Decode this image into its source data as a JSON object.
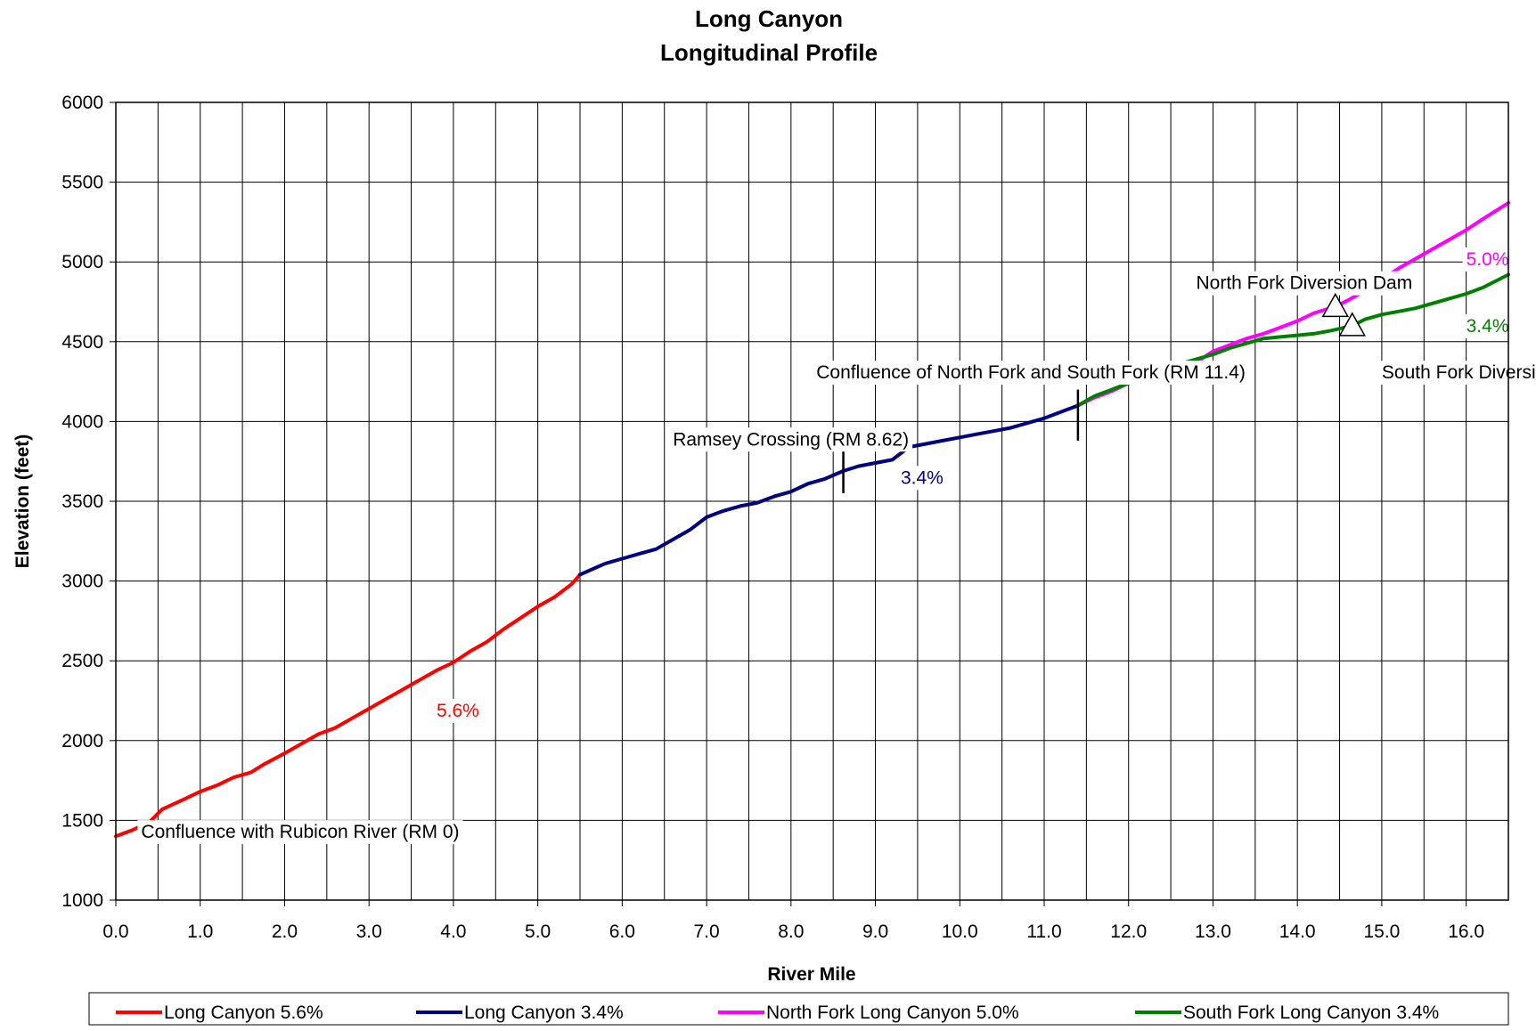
{
  "chart_data": {
    "type": "line",
    "title": "Long Canyon",
    "subtitle": "Longitudinal Profile",
    "xlabel": "River Mile",
    "ylabel": "Elevation (feet)",
    "xlim": [
      0,
      16.5
    ],
    "ylim": [
      1000,
      6000
    ],
    "x_ticks": [
      "0.0",
      "1.0",
      "2.0",
      "3.0",
      "4.0",
      "5.0",
      "6.0",
      "7.0",
      "8.0",
      "9.0",
      "10.0",
      "11.0",
      "12.0",
      "13.0",
      "14.0",
      "15.0",
      "16.0"
    ],
    "y_ticks": [
      "1000",
      "1500",
      "2000",
      "2500",
      "3000",
      "3500",
      "4000",
      "4500",
      "5000",
      "5500",
      "6000"
    ],
    "grid": true,
    "legend_position": "bottom",
    "series": [
      {
        "name": "Long Canyon 5.6%",
        "color": "#ff0000",
        "x": [
          0,
          0.2,
          0.4,
          0.55,
          0.8,
          1.0,
          1.2,
          1.4,
          1.6,
          1.75,
          2.0,
          2.2,
          2.4,
          2.6,
          2.8,
          3.0,
          3.2,
          3.4,
          3.6,
          3.8,
          4.0,
          4.2,
          4.4,
          4.6,
          4.8,
          5.0,
          5.2,
          5.4,
          5.5
        ],
        "y": [
          1400,
          1440,
          1490,
          1570,
          1630,
          1680,
          1720,
          1770,
          1800,
          1850,
          1920,
          1980,
          2040,
          2080,
          2140,
          2200,
          2260,
          2320,
          2380,
          2440,
          2490,
          2560,
          2620,
          2700,
          2770,
          2840,
          2900,
          2980,
          3040
        ]
      },
      {
        "name": "Long Canyon 3.4%",
        "color": "#000080",
        "x": [
          5.5,
          5.8,
          6.0,
          6.2,
          6.4,
          6.6,
          6.8,
          7.0,
          7.2,
          7.4,
          7.6,
          7.8,
          8.0,
          8.2,
          8.4,
          8.62,
          8.8,
          9.0,
          9.2,
          9.4,
          9.6,
          9.8,
          10.0,
          10.2,
          10.4,
          10.6,
          10.8,
          11.0,
          11.2,
          11.4
        ],
        "y": [
          3040,
          3110,
          3140,
          3170,
          3200,
          3260,
          3320,
          3400,
          3440,
          3470,
          3490,
          3530,
          3560,
          3610,
          3640,
          3690,
          3720,
          3740,
          3760,
          3840,
          3860,
          3880,
          3900,
          3920,
          3940,
          3960,
          3990,
          4020,
          4060,
          4100
        ]
      },
      {
        "name": "North Fork Long Canyon 5.0%",
        "color": "#ff00ff",
        "x": [
          11.4,
          11.6,
          11.8,
          12.0,
          12.2,
          12.4,
          12.6,
          12.8,
          13.0,
          13.2,
          13.4,
          13.6,
          13.8,
          14.0,
          14.2,
          14.45,
          14.6,
          14.8,
          15.0,
          15.2,
          15.4,
          15.6,
          15.8,
          16.0,
          16.2,
          16.5
        ],
        "y": [
          4100,
          4150,
          4190,
          4240,
          4280,
          4310,
          4340,
          4370,
          4440,
          4480,
          4520,
          4550,
          4590,
          4630,
          4680,
          4720,
          4760,
          4820,
          4890,
          4960,
          5020,
          5080,
          5140,
          5200,
          5270,
          5370
        ]
      },
      {
        "name": "South Fork Long Canyon 3.4%",
        "color": "#008000",
        "x": [
          11.4,
          11.6,
          11.8,
          12.0,
          12.2,
          12.4,
          12.6,
          12.8,
          13.0,
          13.2,
          13.4,
          13.6,
          13.8,
          14.0,
          14.2,
          14.4,
          14.65,
          14.8,
          15.0,
          15.2,
          15.4,
          15.6,
          15.8,
          16.0,
          16.2,
          16.5
        ],
        "y": [
          4100,
          4160,
          4200,
          4240,
          4290,
          4320,
          4360,
          4390,
          4420,
          4460,
          4490,
          4520,
          4530,
          4540,
          4550,
          4570,
          4600,
          4640,
          4670,
          4690,
          4710,
          4740,
          4770,
          4800,
          4840,
          4920
        ]
      }
    ],
    "annotations": [
      {
        "text": "Confluence with Rubicon River (RM 0)",
        "x": 0.3,
        "y": 1390,
        "color": "#000000"
      },
      {
        "text": "5.6%",
        "x": 3.8,
        "y": 2150,
        "color": "#ff0000"
      },
      {
        "text": "Ramsey Crossing (RM 8.62)",
        "x": 6.6,
        "y": 3850,
        "color": "#000000"
      },
      {
        "text": "3.4%",
        "x": 9.3,
        "y": 3610,
        "color": "#000080"
      },
      {
        "text": "Confluence of North Fork and South Fork (RM 11.4)",
        "x": 8.3,
        "y": 4270,
        "color": "#000000"
      },
      {
        "text": "North Fork Diversion Dam",
        "x": 12.8,
        "y": 4830,
        "color": "#000000"
      },
      {
        "text": "5.0%",
        "x": 16.0,
        "y": 4980,
        "color": "#ff00ff"
      },
      {
        "text": "3.4%",
        "x": 16.0,
        "y": 4560,
        "color": "#008000"
      },
      {
        "text": "South Fork Diversion Dam",
        "x": 15.0,
        "y": 4270,
        "color": "#000000"
      }
    ],
    "markers": [
      {
        "type": "triangle",
        "x": 14.45,
        "y": 4720
      },
      {
        "type": "triangle",
        "x": 14.65,
        "y": 4600
      }
    ],
    "reference_ticks": [
      {
        "x": 8.62,
        "y_from": 3550,
        "y_to": 3830
      },
      {
        "x": 11.4,
        "y_from": 3880,
        "y_to": 4200
      }
    ]
  }
}
